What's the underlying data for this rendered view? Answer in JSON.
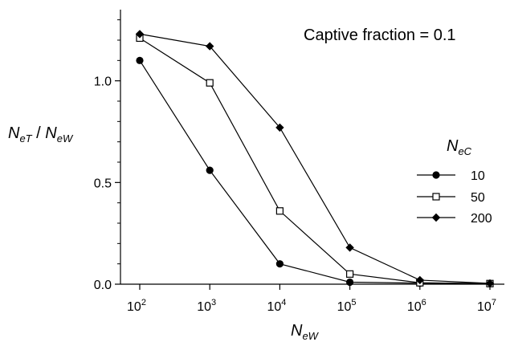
{
  "chart_data": {
    "type": "line",
    "annotation": "Captive fraction = 0.1",
    "xlabel": {
      "main": "N",
      "sub": "eW"
    },
    "ylabel": {
      "main1": "N",
      "sub1": "eT",
      "sep": " / ",
      "main2": "N",
      "sub2": "eW"
    },
    "legend_title": {
      "main": "N",
      "sub": "eC"
    },
    "legend_position": "right",
    "x_scale": "log",
    "xlim": [
      100,
      10000000
    ],
    "ylim": [
      0,
      1.35
    ],
    "x_ticks": [
      {
        "value": 100,
        "base": "10",
        "exp": "2"
      },
      {
        "value": 1000,
        "base": "10",
        "exp": "3"
      },
      {
        "value": 10000,
        "base": "10",
        "exp": "4"
      },
      {
        "value": 100000,
        "base": "10",
        "exp": "5"
      },
      {
        "value": 1000000,
        "base": "10",
        "exp": "6"
      },
      {
        "value": 10000000,
        "base": "10",
        "exp": "7"
      }
    ],
    "y_ticks": [
      {
        "value": 0.0,
        "label": "0.0"
      },
      {
        "value": 0.5,
        "label": "0.5"
      },
      {
        "value": 1.0,
        "label": "1.0"
      }
    ],
    "grid": false,
    "x": [
      100,
      1000,
      10000,
      100000,
      1000000,
      10000000
    ],
    "series": [
      {
        "name": "10",
        "marker": "circle",
        "values": [
          1.1,
          0.56,
          0.1,
          0.01,
          0.005,
          0.003
        ]
      },
      {
        "name": "50",
        "marker": "open-square",
        "values": [
          1.21,
          0.99,
          0.36,
          0.05,
          0.007,
          0.003
        ]
      },
      {
        "name": "200",
        "marker": "diamond",
        "values": [
          1.23,
          1.17,
          0.77,
          0.18,
          0.02,
          0.004
        ]
      }
    ]
  }
}
